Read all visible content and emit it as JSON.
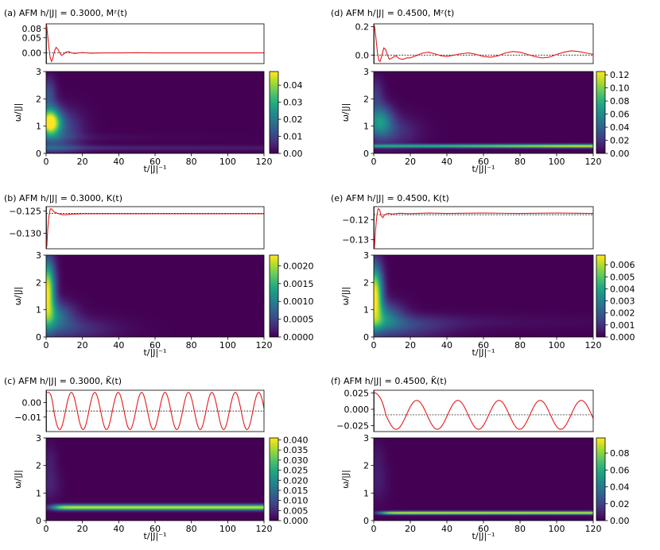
{
  "chart_data": [
    {
      "id": "a",
      "type": "line+heatmap",
      "title": "(a) AFM h/|J| = 0.3000, Mᶻ(t)",
      "xlabel": "t/|J|⁻¹",
      "ylabel": "ω/|J|",
      "line": {
        "ylim": [
          -0.035,
          0.095
        ],
        "yticks": [
          0.08,
          0.05,
          0.0
        ],
        "ytick_labels": [
          "0.08",
          "0.05",
          "0.00"
        ],
        "ref": 0.0,
        "pts": [
          [
            0,
            0.09
          ],
          [
            0.3,
            0.09
          ],
          [
            0.8,
            0.06
          ],
          [
            1.5,
            0.02
          ],
          [
            2.2,
            -0.015
          ],
          [
            3,
            -0.028
          ],
          [
            3.8,
            -0.015
          ],
          [
            4.6,
            0.006
          ],
          [
            5.5,
            0.018
          ],
          [
            6.5,
            0.012
          ],
          [
            7.5,
            0
          ],
          [
            8.5,
            -0.008
          ],
          [
            9.5,
            -0.005
          ],
          [
            11,
            0.003
          ],
          [
            12.5,
            0.004
          ],
          [
            14,
            0
          ],
          [
            16,
            -0.002
          ],
          [
            18,
            0
          ],
          [
            20,
            0.001
          ],
          [
            25,
            -0.001
          ],
          [
            30,
            0
          ],
          [
            40,
            0
          ],
          [
            50,
            0.0005
          ],
          [
            60,
            0
          ],
          [
            80,
            0
          ],
          [
            100,
            0
          ],
          [
            120,
            0
          ]
        ]
      },
      "heatmap": {
        "xlim": [
          0,
          120
        ],
        "ylim": [
          0,
          3
        ],
        "xticks": [
          0,
          20,
          40,
          60,
          80,
          100,
          120
        ],
        "yticks": [
          0,
          1,
          2,
          3
        ],
        "clim": [
          0,
          0.048
        ],
        "cbar_ticks": [
          0.0,
          0.01,
          0.02,
          0.03,
          0.04
        ],
        "cbar_labels": [
          "0.00",
          "0.01",
          "0.02",
          "0.03",
          "0.04"
        ],
        "spots": [
          {
            "t": 2,
            "w": 1.15,
            "st": 4,
            "sw": 0.35,
            "a": 0.048
          },
          {
            "t": 1,
            "w": 2.2,
            "st": 3,
            "sw": 0.4,
            "a": 0.012
          },
          {
            "t": 8,
            "w": 0.9,
            "st": 8,
            "sw": 0.5,
            "a": 0.012
          },
          {
            "t": 0,
            "w": 0.2,
            "st": 12,
            "sw": 0.15,
            "a": 0.006
          }
        ],
        "bands": [
          {
            "w": 0.2,
            "sw": 0.07,
            "a": 0.006,
            "t0": 5,
            "decay": 200
          },
          {
            "w": 0.6,
            "sw": 0.1,
            "a": 0.003,
            "t0": 5,
            "decay": 40
          }
        ]
      }
    },
    {
      "id": "d",
      "type": "line+heatmap",
      "title": "(d) AFM h/|J| = 0.4500, Mᶻ(t)",
      "xlabel": "t/|J|⁻¹",
      "ylabel": "ω/|J|",
      "line": {
        "ylim": [
          -0.06,
          0.22
        ],
        "yticks": [
          0.2,
          0.0
        ],
        "ytick_labels": [
          "0.2",
          "0.0"
        ],
        "ref": 0.0,
        "pts": [
          [
            0,
            0.2
          ],
          [
            0.5,
            0.2
          ],
          [
            1.2,
            0.12
          ],
          [
            2,
            0.02
          ],
          [
            2.8,
            -0.04
          ],
          [
            3.5,
            -0.045
          ],
          [
            4.5,
            0
          ],
          [
            5.5,
            0.05
          ],
          [
            6.5,
            0.04
          ],
          [
            7.5,
            0
          ],
          [
            8.5,
            -0.03
          ],
          [
            10,
            -0.02
          ],
          [
            12,
            -0.005
          ],
          [
            14,
            -0.025
          ],
          [
            16,
            -0.03
          ],
          [
            18,
            -0.02
          ],
          [
            20,
            -0.02
          ],
          [
            23,
            -0.005
          ],
          [
            27,
            0.015
          ],
          [
            30,
            0.02
          ],
          [
            33,
            0.01
          ],
          [
            37,
            -0.005
          ],
          [
            40,
            -0.01
          ],
          [
            44,
            0
          ],
          [
            48,
            0.01
          ],
          [
            52,
            0.015
          ],
          [
            56,
            0.005
          ],
          [
            60,
            -0.01
          ],
          [
            64,
            -0.015
          ],
          [
            68,
            -0.005
          ],
          [
            72,
            0.015
          ],
          [
            76,
            0.025
          ],
          [
            80,
            0.02
          ],
          [
            84,
            0.005
          ],
          [
            88,
            -0.01
          ],
          [
            92,
            -0.02
          ],
          [
            96,
            -0.015
          ],
          [
            100,
            0.005
          ],
          [
            104,
            0.02
          ],
          [
            108,
            0.03
          ],
          [
            112,
            0.025
          ],
          [
            116,
            0.015
          ],
          [
            120,
            0.005
          ]
        ]
      },
      "heatmap": {
        "xlim": [
          0,
          120
        ],
        "ylim": [
          0,
          3
        ],
        "xticks": [
          0,
          20,
          40,
          60,
          80,
          100,
          120
        ],
        "yticks": [
          0,
          1,
          2,
          3
        ],
        "clim": [
          0,
          0.125
        ],
        "cbar_ticks": [
          0.0,
          0.02,
          0.04,
          0.06,
          0.08,
          0.1,
          0.12
        ],
        "cbar_labels": [
          "0.00",
          "0.02",
          "0.04",
          "0.06",
          "0.08",
          "0.10",
          "0.12"
        ],
        "spots": [
          {
            "t": 3,
            "w": 1.2,
            "st": 5,
            "sw": 0.4,
            "a": 0.06
          },
          {
            "t": 1,
            "w": 2.2,
            "st": 3,
            "sw": 0.4,
            "a": 0.02
          },
          {
            "t": 10,
            "w": 0.8,
            "st": 10,
            "sw": 0.4,
            "a": 0.02
          }
        ],
        "bands": [
          {
            "w": 0.27,
            "sw": 0.045,
            "a": 0.12,
            "t0": 0,
            "decay": 0,
            "grow": 110
          }
        ]
      }
    },
    {
      "id": "b",
      "type": "line+heatmap",
      "title": "(b) AFM h/|J| = 0.3000, K(t)",
      "xlabel": "t/|J|⁻¹",
      "ylabel": "ω/|J|",
      "line": {
        "ylim": [
          -0.1335,
          -0.124
        ],
        "yticks": [
          -0.125,
          -0.13
        ],
        "ytick_labels": [
          "−0.125",
          "−0.130"
        ],
        "ref": -0.1255,
        "pts": [
          [
            0,
            -0.133
          ],
          [
            0.4,
            -0.133
          ],
          [
            0.9,
            -0.129
          ],
          [
            1.6,
            -0.126
          ],
          [
            2.3,
            -0.1245
          ],
          [
            3,
            -0.1245
          ],
          [
            4,
            -0.125
          ],
          [
            5,
            -0.1253
          ],
          [
            7,
            -0.1256
          ],
          [
            9,
            -0.1258
          ],
          [
            11,
            -0.1258
          ],
          [
            14,
            -0.1257
          ],
          [
            20,
            -0.1256
          ],
          [
            30,
            -0.1256
          ],
          [
            60,
            -0.1256
          ],
          [
            120,
            -0.1256
          ]
        ]
      },
      "heatmap": {
        "xlim": [
          0,
          120
        ],
        "ylim": [
          0,
          3
        ],
        "xticks": [
          0,
          20,
          40,
          60,
          80,
          100,
          120
        ],
        "yticks": [
          0,
          1,
          2,
          3
        ],
        "clim": [
          0,
          0.0023
        ],
        "cbar_ticks": [
          0.0,
          0.0005,
          0.001,
          0.0015,
          0.002
        ],
        "cbar_labels": [
          "0.0000",
          "0.0005",
          "0.0010",
          "0.0015",
          "0.0020"
        ],
        "spots": [
          {
            "t": 0.5,
            "w": 1.7,
            "st": 3,
            "sw": 0.75,
            "a": 0.0023
          },
          {
            "t": 3,
            "w": 0.8,
            "st": 8,
            "sw": 0.35,
            "a": 0.0009
          },
          {
            "t": 8,
            "w": 0.3,
            "st": 20,
            "sw": 0.3,
            "a": 0.0004
          }
        ],
        "bands": []
      }
    },
    {
      "id": "e",
      "type": "line+heatmap",
      "title": "(e) AFM h/|J| = 0.4500, K(t)",
      "xlabel": "t/|J|⁻¹",
      "ylabel": "ω/|J|",
      "line": {
        "ylim": [
          -0.1345,
          -0.1135
        ],
        "yticks": [
          -0.12,
          -0.13
        ],
        "ytick_labels": [
          "−0.12",
          "−0.13"
        ],
        "ref": -0.1175,
        "pts": [
          [
            0,
            -0.134
          ],
          [
            0.4,
            -0.134
          ],
          [
            1,
            -0.125
          ],
          [
            1.7,
            -0.118
          ],
          [
            2.4,
            -0.1145
          ],
          [
            3.2,
            -0.115
          ],
          [
            4,
            -0.118
          ],
          [
            5,
            -0.119
          ],
          [
            6,
            -0.1175
          ],
          [
            8,
            -0.1168
          ],
          [
            10,
            -0.1172
          ],
          [
            14,
            -0.1168
          ],
          [
            20,
            -0.117
          ],
          [
            30,
            -0.1167
          ],
          [
            40,
            -0.1169
          ],
          [
            60,
            -0.1167
          ],
          [
            80,
            -0.1169
          ],
          [
            100,
            -0.1167
          ],
          [
            120,
            -0.1169
          ]
        ]
      },
      "heatmap": {
        "xlim": [
          0,
          120
        ],
        "ylim": [
          0,
          3
        ],
        "xticks": [
          0,
          20,
          40,
          60,
          80,
          100,
          120
        ],
        "yticks": [
          0,
          1,
          2,
          3
        ],
        "clim": [
          0,
          0.0068
        ],
        "cbar_ticks": [
          0.0,
          0.001,
          0.002,
          0.003,
          0.004,
          0.005,
          0.006
        ],
        "cbar_labels": [
          "0.000",
          "0.001",
          "0.002",
          "0.003",
          "0.004",
          "0.005",
          "0.006"
        ],
        "spots": [
          {
            "t": 0.5,
            "w": 1.6,
            "st": 3,
            "sw": 0.7,
            "a": 0.0068
          },
          {
            "t": 4,
            "w": 0.8,
            "st": 8,
            "sw": 0.35,
            "a": 0.0025
          },
          {
            "t": 10,
            "w": 0.3,
            "st": 20,
            "sw": 0.3,
            "a": 0.0012
          }
        ],
        "bands": [
          {
            "w": 0.55,
            "sw": 0.2,
            "a": 0.0009,
            "t0": 0,
            "decay": 60
          }
        ]
      }
    },
    {
      "id": "c",
      "type": "line+heatmap",
      "title": "(c) AFM h/|J| = 0.3000, K̃(t)",
      "xlabel": "t/|J|⁻¹",
      "ylabel": "ω/|J|",
      "line": {
        "ylim": [
          -0.02,
          0.0085
        ],
        "yticks": [
          0.0,
          -0.01
        ],
        "ytick_labels": [
          "0.00",
          "−0.01"
        ],
        "ref": -0.0058,
        "osc": {
          "t0": 0,
          "flat": 1.0,
          "c": -0.0058,
          "A": 0.0128,
          "period": 12.9,
          "phase": 0,
          "start": 0.007
        }
      },
      "heatmap": {
        "xlim": [
          0,
          120
        ],
        "ylim": [
          0,
          3
        ],
        "xticks": [
          0,
          20,
          40,
          60,
          80,
          100,
          120
        ],
        "yticks": [
          0,
          1,
          2,
          3
        ],
        "clim": [
          0,
          0.041
        ],
        "cbar_ticks": [
          0.0,
          0.005,
          0.01,
          0.015,
          0.02,
          0.025,
          0.03,
          0.035,
          0.04
        ],
        "cbar_labels": [
          "0.000",
          "0.005",
          "0.010",
          "0.015",
          "0.020",
          "0.025",
          "0.030",
          "0.035",
          "0.040"
        ],
        "spots": [
          {
            "t": 2,
            "w": 1.3,
            "st": 4,
            "sw": 0.4,
            "a": 0.004
          },
          {
            "t": 2,
            "w": 2.2,
            "st": 3,
            "sw": 0.4,
            "a": 0.003
          }
        ],
        "bands": [
          {
            "w": 0.48,
            "sw": 0.07,
            "a": 0.038,
            "t0": 4,
            "decay": 0,
            "rise": 6
          }
        ]
      }
    },
    {
      "id": "f",
      "type": "line+heatmap",
      "title": "(f) AFM h/|J| = 0.4500, K̃(t)",
      "xlabel": "t/|J|⁻¹",
      "ylabel": "ω/|J|",
      "line": {
        "ylim": [
          -0.034,
          0.029
        ],
        "yticks": [
          0.025,
          0.0,
          -0.025
        ],
        "ytick_labels": [
          "0.025",
          "0.000",
          "−0.025"
        ],
        "ref": -0.0085,
        "osc": {
          "t0": 0,
          "flat": 1.0,
          "c": -0.0085,
          "A": 0.022,
          "period": 22.5,
          "phase": 0,
          "start": 0.025
        }
      },
      "heatmap": {
        "xlim": [
          0,
          120
        ],
        "ylim": [
          0,
          3
        ],
        "xticks": [
          0,
          20,
          40,
          60,
          80,
          100,
          120
        ],
        "yticks": [
          0,
          1,
          2,
          3
        ],
        "clim": [
          0,
          0.098
        ],
        "cbar_ticks": [
          0.0,
          0.02,
          0.04,
          0.06,
          0.08
        ],
        "cbar_labels": [
          "0.00",
          "0.02",
          "0.04",
          "0.06",
          "0.08"
        ],
        "spots": [
          {
            "t": 2,
            "w": 1.4,
            "st": 4,
            "sw": 0.5,
            "a": 0.008
          },
          {
            "t": 2,
            "w": 2.3,
            "st": 3,
            "sw": 0.4,
            "a": 0.005
          }
        ],
        "bands": [
          {
            "w": 0.28,
            "sw": 0.04,
            "a": 0.095,
            "t0": 4,
            "decay": 0,
            "rise": 6
          }
        ]
      }
    }
  ]
}
